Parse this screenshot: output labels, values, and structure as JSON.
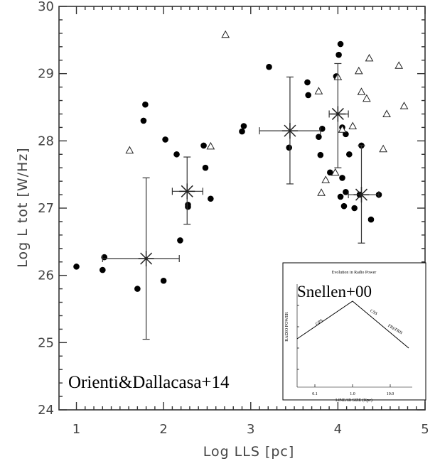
{
  "chart_data": {
    "type": "scatter",
    "title": "",
    "xlabel": "Log LLS [pc]",
    "ylabel": "Log L tot [W/Hz]",
    "xlim": [
      0.8,
      5
    ],
    "ylim": [
      24,
      30
    ],
    "xticks": [
      "1",
      "2",
      "3",
      "4",
      "5"
    ],
    "yticks": [
      "24",
      "25",
      "26",
      "27",
      "28",
      "29",
      "30"
    ],
    "series": [
      {
        "marker": "filled-circle",
        "points": [
          [
            1.0,
            26.13
          ],
          [
            1.32,
            26.27
          ],
          [
            1.3,
            26.08
          ],
          [
            1.7,
            25.8
          ],
          [
            2.0,
            25.92
          ],
          [
            1.77,
            28.3
          ],
          [
            1.79,
            28.54
          ],
          [
            2.02,
            28.02
          ],
          [
            2.15,
            27.8
          ],
          [
            2.46,
            27.93
          ],
          [
            2.48,
            27.6
          ],
          [
            2.54,
            27.14
          ],
          [
            2.28,
            27.05
          ],
          [
            2.28,
            27.02
          ],
          [
            2.19,
            26.52
          ],
          [
            2.9,
            28.14
          ],
          [
            2.92,
            28.22
          ],
          [
            3.21,
            29.1
          ],
          [
            3.44,
            27.9
          ],
          [
            3.65,
            28.87
          ],
          [
            3.66,
            28.68
          ],
          [
            3.78,
            28.06
          ],
          [
            3.82,
            28.18
          ],
          [
            3.8,
            27.79
          ],
          [
            3.91,
            27.53
          ],
          [
            3.98,
            28.96
          ],
          [
            4.01,
            29.28
          ],
          [
            4.03,
            29.44
          ],
          [
            4.05,
            28.2
          ],
          [
            4.09,
            28.1
          ],
          [
            4.03,
            27.17
          ],
          [
            4.05,
            27.45
          ],
          [
            4.09,
            27.24
          ],
          [
            4.07,
            27.03
          ],
          [
            4.13,
            27.8
          ],
          [
            4.19,
            27.0
          ],
          [
            4.27,
            27.93
          ],
          [
            4.25,
            27.2
          ],
          [
            4.38,
            26.83
          ],
          [
            4.47,
            27.2
          ]
        ]
      },
      {
        "marker": "open-triangle",
        "points": [
          [
            1.61,
            27.86
          ],
          [
            2.54,
            27.92
          ],
          [
            2.71,
            29.58
          ],
          [
            3.78,
            28.74
          ],
          [
            3.81,
            27.23
          ],
          [
            3.86,
            27.42
          ],
          [
            3.97,
            27.53
          ],
          [
            4.0,
            28.95
          ],
          [
            4.05,
            28.17
          ],
          [
            4.17,
            28.22
          ],
          [
            4.24,
            29.04
          ],
          [
            4.27,
            28.73
          ],
          [
            4.33,
            28.63
          ],
          [
            4.36,
            29.23
          ],
          [
            4.52,
            27.88
          ],
          [
            4.56,
            28.4
          ],
          [
            4.7,
            29.12
          ],
          [
            4.76,
            28.52
          ]
        ]
      },
      {
        "marker": "asterisk-with-errorbars",
        "points": [
          {
            "x": 1.8,
            "y": 26.25,
            "xerr": [
              1.3,
              2.18
            ],
            "yerr": [
              25.05,
              27.45
            ]
          },
          {
            "x": 2.27,
            "y": 27.25,
            "xerr": [
              2.1,
              2.45
            ],
            "yerr": [
              26.76,
              27.76
            ]
          },
          {
            "x": 3.45,
            "y": 28.15,
            "xerr": [
              3.1,
              3.8
            ],
            "yerr": [
              27.36,
              28.95
            ]
          },
          {
            "x": 4.0,
            "y": 28.4,
            "xerr": [
              3.9,
              4.12
            ],
            "yerr": [
              27.6,
              29.15
            ]
          },
          {
            "x": 4.27,
            "y": 27.2,
            "xerr": [
              4.12,
              4.47
            ],
            "yerr": [
              26.48,
              27.93
            ]
          }
        ]
      }
    ],
    "annotations": [
      "Orienti&Dallacasa+14"
    ],
    "inset": {
      "title": "Evolution in Radio Power",
      "label": "Snellen+00",
      "xlabel": "LINEAR SIZE (Kpc)",
      "ylabel": "RADIO POWER",
      "xticks": [
        "0.1",
        "1.0",
        "10.0"
      ],
      "regions": [
        "GPS",
        "CSS",
        "FRI/FRII"
      ]
    }
  }
}
